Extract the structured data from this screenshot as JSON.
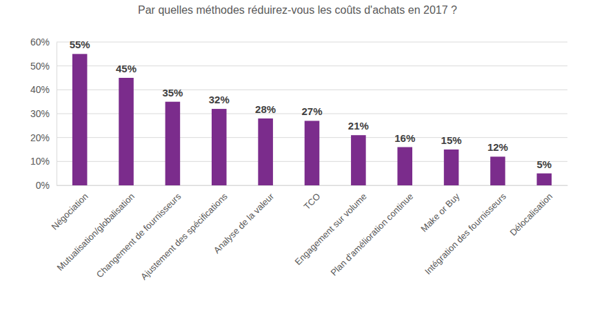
{
  "chart_data": {
    "type": "bar",
    "title": "Par quelles méthodes réduirez-vous les coûts d'achats en 2017 ?",
    "categories": [
      "Négociation",
      "Mutualisation/globalisation",
      "Changement de fournisseurs",
      "Ajustement des spécifications",
      "Analyse de la valeur",
      "TCO",
      "Engagement sur volume",
      "Plan d'amélioration continue",
      "Make or Buy",
      "Intégration des fournisseurs",
      "Délocalisation"
    ],
    "values": [
      55,
      45,
      35,
      32,
      28,
      27,
      21,
      16,
      15,
      12,
      5
    ],
    "value_labels": [
      "55%",
      "45%",
      "35%",
      "32%",
      "28%",
      "27%",
      "21%",
      "16%",
      "15%",
      "12%",
      "5%"
    ],
    "color": "#7b2c8c",
    "ylim": [
      0,
      60
    ],
    "yticks": [
      {
        "value": 0,
        "label": "0%"
      },
      {
        "value": 10,
        "label": "10%"
      },
      {
        "value": 20,
        "label": "20%"
      },
      {
        "value": 30,
        "label": "30%"
      },
      {
        "value": 40,
        "label": "40%"
      },
      {
        "value": 50,
        "label": "50%"
      },
      {
        "value": 60,
        "label": "60%"
      }
    ],
    "grid": true,
    "data_labels": true
  }
}
